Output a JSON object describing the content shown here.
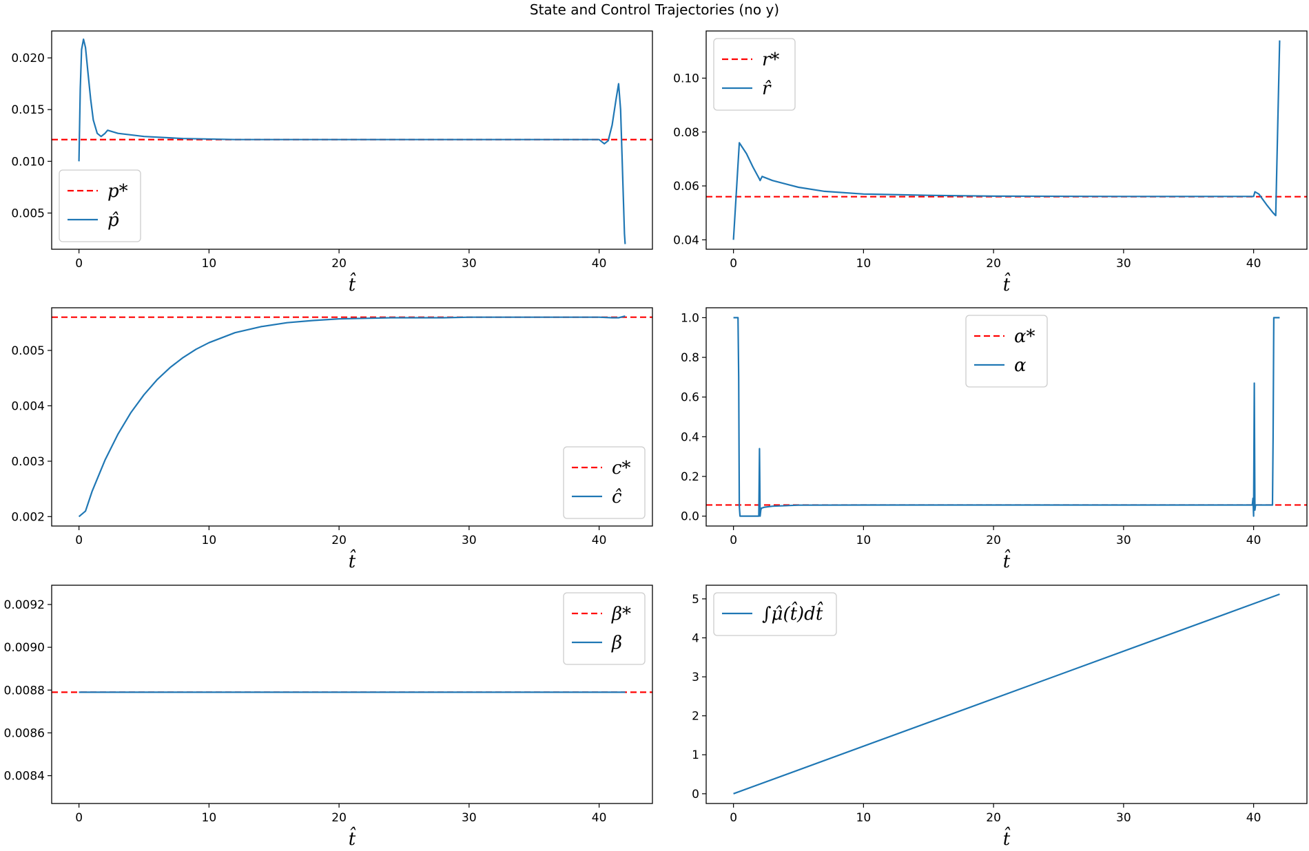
{
  "figure": {
    "title": "State and Control Trajectories (no y)"
  },
  "colors": {
    "series": "#1f77b4",
    "reference": "#ff0000",
    "axes": "#000000",
    "legend_border": "#cccccc"
  },
  "chart_data": [
    {
      "id": "p",
      "type": "line",
      "xlabel": "t̂",
      "xlim": [
        -2.1,
        44.1
      ],
      "ylim": [
        0.0015,
        0.0226
      ],
      "xticks": [
        0,
        10,
        20,
        30,
        40
      ],
      "yticks": [
        0.005,
        0.01,
        0.015,
        0.02
      ],
      "ytick_labels": [
        "0.005",
        "0.010",
        "0.015",
        "0.020"
      ],
      "legend_position": "lower-left",
      "legend": [
        {
          "label": "p*",
          "style": "dashed",
          "kind": "reference"
        },
        {
          "label": "p̂",
          "style": "solid",
          "kind": "series"
        }
      ],
      "reference_value": 0.0121,
      "series": {
        "x": [
          0.0,
          0.1,
          0.2,
          0.35,
          0.5,
          0.7,
          0.9,
          1.1,
          1.4,
          1.7,
          2.0,
          2.2,
          3.0,
          5.0,
          8.0,
          12.0,
          20.0,
          40.0,
          40.2,
          40.4,
          40.7,
          41.0,
          41.3,
          41.5,
          41.65,
          41.8,
          41.95,
          42.0
        ],
        "y": [
          0.01,
          0.017,
          0.0208,
          0.0218,
          0.021,
          0.0185,
          0.016,
          0.014,
          0.0127,
          0.0124,
          0.0127,
          0.013,
          0.0127,
          0.0124,
          0.0122,
          0.0121,
          0.0121,
          0.0121,
          0.0119,
          0.0117,
          0.012,
          0.0135,
          0.016,
          0.0175,
          0.015,
          0.009,
          0.003,
          0.002
        ]
      }
    },
    {
      "id": "r",
      "type": "line",
      "xlabel": "t̂",
      "xlim": [
        -2.1,
        44.1
      ],
      "ylim": [
        0.0365,
        0.1175
      ],
      "xticks": [
        0,
        10,
        20,
        30,
        40
      ],
      "yticks": [
        0.04,
        0.06,
        0.08,
        0.1
      ],
      "ytick_labels": [
        "0.04",
        "0.06",
        "0.08",
        "0.10"
      ],
      "legend_position": "upper-left",
      "legend": [
        {
          "label": "r*",
          "style": "dashed",
          "kind": "reference"
        },
        {
          "label": "r̂",
          "style": "solid",
          "kind": "series"
        }
      ],
      "reference_value": 0.056,
      "series": {
        "x": [
          0.0,
          0.2,
          0.45,
          1.0,
          1.5,
          2.0,
          2.05,
          2.2,
          3.0,
          5.0,
          7.0,
          10.0,
          15.0,
          20.0,
          30.0,
          40.0,
          40.1,
          40.4,
          41.0,
          41.5,
          41.7,
          42.0
        ],
        "y": [
          0.04,
          0.056,
          0.076,
          0.072,
          0.067,
          0.0625,
          0.062,
          0.0635,
          0.062,
          0.0595,
          0.058,
          0.057,
          0.0565,
          0.0562,
          0.0561,
          0.0561,
          0.0578,
          0.057,
          0.053,
          0.05,
          0.049,
          0.114
        ]
      }
    },
    {
      "id": "c",
      "type": "line",
      "xlabel": "t̂",
      "xlim": [
        -2.1,
        44.1
      ],
      "ylim": [
        0.00183,
        0.00577
      ],
      "xticks": [
        0,
        10,
        20,
        30,
        40
      ],
      "yticks": [
        0.002,
        0.003,
        0.004,
        0.005
      ],
      "ytick_labels": [
        "0.002",
        "0.003",
        "0.004",
        "0.005"
      ],
      "legend_position": "lower-right",
      "legend": [
        {
          "label": "c*",
          "style": "dashed",
          "kind": "reference"
        },
        {
          "label": "ĉ",
          "style": "solid",
          "kind": "series"
        }
      ],
      "reference_value": 0.0056,
      "series": {
        "x": [
          0,
          0.5,
          1,
          2,
          3,
          4,
          5,
          6,
          7,
          8,
          9,
          10,
          12,
          14,
          16,
          18,
          20,
          22,
          24,
          26,
          28,
          30,
          32,
          34,
          36,
          38,
          40,
          41,
          41.5,
          42
        ],
        "y": [
          0.002,
          0.0021,
          0.00245,
          0.00302,
          0.00349,
          0.00388,
          0.0042,
          0.00447,
          0.00469,
          0.00487,
          0.00502,
          0.00514,
          0.00532,
          0.00543,
          0.0055,
          0.00554,
          0.00557,
          0.00558,
          0.00559,
          0.00559,
          0.00559,
          0.0056,
          0.0056,
          0.0056,
          0.0056,
          0.0056,
          0.0056,
          0.00559,
          0.00559,
          0.00562
        ]
      }
    },
    {
      "id": "alpha",
      "type": "line",
      "xlabel": "t̂",
      "xlim": [
        -2.1,
        44.1
      ],
      "ylim": [
        -0.05,
        1.05
      ],
      "xticks": [
        0,
        10,
        20,
        30,
        40
      ],
      "yticks": [
        0.0,
        0.2,
        0.4,
        0.6,
        0.8,
        1.0
      ],
      "ytick_labels": [
        "0.0",
        "0.2",
        "0.4",
        "0.6",
        "0.8",
        "1.0"
      ],
      "legend_position": "upper-center",
      "legend": [
        {
          "label": "α*",
          "style": "dashed",
          "kind": "reference"
        },
        {
          "label": "α",
          "style": "solid",
          "kind": "series"
        }
      ],
      "reference_value": 0.056,
      "series": {
        "x": [
          0.0,
          0.35,
          0.4,
          0.45,
          0.5,
          1.95,
          2.0,
          2.05,
          2.1,
          2.15,
          2.4,
          3.0,
          5.0,
          10.0,
          20.0,
          30.0,
          39.9,
          39.95,
          40.0,
          40.05,
          40.1,
          40.15,
          40.2,
          41.45,
          41.5,
          41.55,
          42.0
        ],
        "y": [
          1.0,
          1.0,
          0.7,
          0.05,
          0.0,
          0.0,
          0.34,
          0.0,
          0.03,
          0.04,
          0.045,
          0.05,
          0.055,
          0.056,
          0.056,
          0.056,
          0.056,
          0.09,
          0.0,
          0.67,
          0.03,
          0.056,
          0.056,
          0.056,
          0.4,
          1.0,
          1.0
        ]
      }
    },
    {
      "id": "beta",
      "type": "line",
      "xlabel": "t̂",
      "xlim": [
        -2.1,
        44.1
      ],
      "ylim": [
        0.00827,
        0.00929
      ],
      "xticks": [
        0,
        10,
        20,
        30,
        40
      ],
      "yticks": [
        0.0084,
        0.0086,
        0.0088,
        0.009,
        0.0092
      ],
      "ytick_labels": [
        "0.0084",
        "0.0086",
        "0.0088",
        "0.0090",
        "0.0092"
      ],
      "legend_position": "upper-right",
      "legend": [
        {
          "label": "β*",
          "style": "dashed",
          "kind": "reference"
        },
        {
          "label": "β",
          "style": "solid",
          "kind": "series"
        }
      ],
      "reference_value": 0.00879,
      "series": {
        "x": [
          0,
          42
        ],
        "y": [
          0.00879,
          0.00879
        ]
      }
    },
    {
      "id": "mu_integral",
      "type": "line",
      "xlabel": "t̂",
      "xlim": [
        -2.1,
        44.1
      ],
      "ylim": [
        -0.25,
        5.35
      ],
      "xticks": [
        0,
        10,
        20,
        30,
        40
      ],
      "yticks": [
        0,
        1,
        2,
        3,
        4,
        5
      ],
      "ytick_labels": [
        "0",
        "1",
        "2",
        "3",
        "4",
        "5"
      ],
      "legend_position": "upper-left",
      "legend": [
        {
          "label": "∫μ̂(t̂)dt̂",
          "style": "solid",
          "kind": "series"
        }
      ],
      "reference_value": null,
      "series": {
        "x": [
          0,
          42
        ],
        "y": [
          0.0,
          5.12
        ]
      }
    }
  ]
}
